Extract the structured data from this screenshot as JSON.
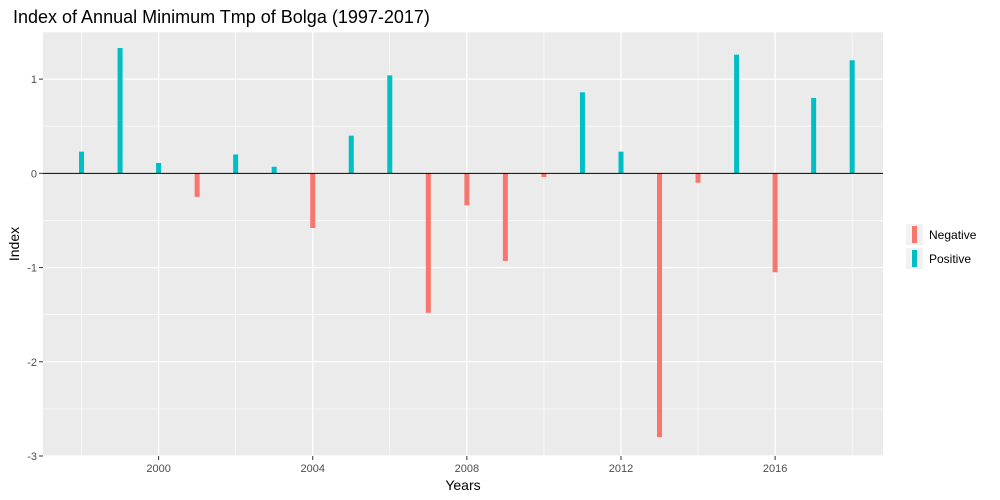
{
  "chart_data": {
    "type": "bar",
    "title": "Index of Annual Minimum Tmp of Bolga (1997-2017)",
    "xlabel": "Years",
    "ylabel": "Index",
    "xlim": [
      1997.0,
      2018.8
    ],
    "ylim": [
      -3.0,
      1.5
    ],
    "x_ticks": [
      2000,
      2004,
      2008,
      2012,
      2016
    ],
    "y_ticks": [
      -3,
      -2,
      -1,
      0,
      1
    ],
    "grid": true,
    "legend": "right",
    "zero_line": 0,
    "colors": {
      "Negative": "#F8766D",
      "Positive": "#00BFC4",
      "panel": "#EBEBEB",
      "grid": "#FFFFFF"
    },
    "series": [
      {
        "name": "Negative",
        "x": [
          2001,
          2004,
          2007,
          2008,
          2009,
          2010,
          2013,
          2014,
          2016
        ],
        "values": [
          -0.25,
          -0.58,
          -1.48,
          -0.34,
          -0.93,
          -0.04,
          -2.8,
          -0.1,
          -1.05
        ]
      },
      {
        "name": "Positive",
        "x": [
          1998,
          1999,
          2000,
          2002,
          2003,
          2005,
          2006,
          2011,
          2012,
          2015,
          2017,
          2018
        ],
        "values": [
          0.23,
          1.33,
          0.11,
          0.2,
          0.07,
          0.4,
          1.04,
          0.86,
          0.23,
          1.26,
          0.8,
          1.2
        ]
      }
    ]
  }
}
